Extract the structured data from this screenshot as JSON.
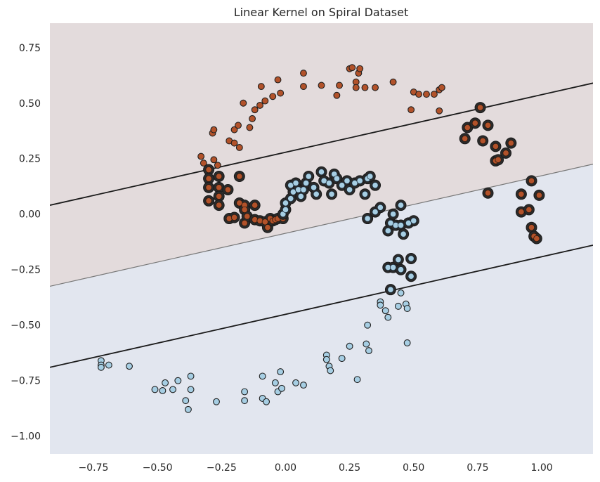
{
  "chart_data": {
    "type": "scatter",
    "title": "Linear Kernel on Spiral Dataset",
    "xlabel": "",
    "ylabel": "",
    "xlim": [
      -0.92,
      1.2
    ],
    "ylim": [
      -1.08,
      0.86
    ],
    "x_ticks": [
      -0.75,
      -0.5,
      -0.25,
      0.0,
      0.25,
      0.5,
      0.75,
      1.0
    ],
    "x_tick_labels": [
      "−0.75",
      "−0.50",
      "−0.25",
      "0.00",
      "0.25",
      "0.50",
      "0.75",
      "1.00"
    ],
    "y_ticks": [
      0.75,
      0.5,
      0.25,
      0.0,
      -0.25,
      -0.5,
      -0.75,
      -1.0
    ],
    "y_tick_labels": [
      "0.75",
      "0.50",
      "0.25",
      "0.00",
      "−0.25",
      "−0.50",
      "−0.75",
      "−1.00"
    ],
    "grid": false,
    "legend": "none",
    "regions": [
      {
        "name": "class-1-region",
        "side": "above-decision-boundary",
        "color": "#e3dbdc"
      },
      {
        "name": "class-0-region",
        "side": "below-decision-boundary",
        "color": "#e2e6ef"
      }
    ],
    "lines": [
      {
        "name": "upper-margin",
        "style": "solid",
        "color": "#1a1a1a",
        "points": [
          [
            -0.92,
            0.04
          ],
          [
            1.2,
            0.59
          ]
        ]
      },
      {
        "name": "decision-boundary",
        "style": "solid-thin",
        "color": "#777777",
        "points": [
          [
            -0.92,
            -0.325
          ],
          [
            1.2,
            0.225
          ]
        ]
      },
      {
        "name": "lower-margin",
        "style": "solid",
        "color": "#1a1a1a",
        "points": [
          [
            -0.92,
            -0.69
          ],
          [
            1.2,
            -0.14
          ]
        ]
      }
    ],
    "series": [
      {
        "class": 1,
        "color": "#b2522a",
        "edge_color": "#2a1a10",
        "points": [
          [
            -0.33,
            0.26
          ],
          [
            -0.32,
            0.23
          ],
          [
            -0.285,
            0.365
          ],
          [
            -0.28,
            0.38
          ],
          [
            -0.28,
            0.245
          ],
          [
            -0.265,
            0.22
          ],
          [
            -0.22,
            0.33
          ],
          [
            -0.2,
            0.38
          ],
          [
            -0.2,
            0.32
          ],
          [
            -0.185,
            0.4
          ],
          [
            -0.18,
            0.3
          ],
          [
            -0.165,
            0.5
          ],
          [
            -0.14,
            0.39
          ],
          [
            -0.13,
            0.43
          ],
          [
            -0.12,
            0.47
          ],
          [
            -0.1,
            0.49
          ],
          [
            -0.095,
            0.575
          ],
          [
            -0.08,
            0.51
          ],
          [
            -0.05,
            0.53
          ],
          [
            -0.03,
            0.605
          ],
          [
            -0.02,
            0.545
          ],
          [
            0.07,
            0.635
          ],
          [
            0.07,
            0.575
          ],
          [
            0.14,
            0.58
          ],
          [
            0.2,
            0.535
          ],
          [
            0.21,
            0.58
          ],
          [
            0.25,
            0.655
          ],
          [
            0.26,
            0.66
          ],
          [
            0.275,
            0.595
          ],
          [
            0.275,
            0.57
          ],
          [
            0.285,
            0.635
          ],
          [
            0.29,
            0.655
          ],
          [
            0.31,
            0.57
          ],
          [
            0.35,
            0.57
          ],
          [
            0.42,
            0.595
          ],
          [
            0.49,
            0.47
          ],
          [
            0.5,
            0.55
          ],
          [
            0.52,
            0.54
          ],
          [
            0.55,
            0.54
          ],
          [
            0.58,
            0.54
          ],
          [
            0.6,
            0.56
          ],
          [
            0.6,
            0.465
          ],
          [
            0.61,
            0.57
          ]
        ],
        "support_vectors": [
          [
            -0.3,
            0.2
          ],
          [
            -0.3,
            0.16
          ],
          [
            -0.3,
            0.12
          ],
          [
            -0.3,
            0.06
          ],
          [
            -0.26,
            0.17
          ],
          [
            -0.26,
            0.12
          ],
          [
            -0.26,
            0.08
          ],
          [
            -0.26,
            0.04
          ],
          [
            -0.225,
            0.11
          ],
          [
            -0.22,
            -0.02
          ],
          [
            -0.2,
            -0.015
          ],
          [
            -0.18,
            0.17
          ],
          [
            -0.18,
            0.05
          ],
          [
            -0.16,
            0.04
          ],
          [
            -0.16,
            0.02
          ],
          [
            -0.16,
            -0.04
          ],
          [
            -0.15,
            -0.01
          ],
          [
            -0.12,
            0.04
          ],
          [
            -0.12,
            -0.025
          ],
          [
            -0.1,
            -0.03
          ],
          [
            -0.08,
            -0.035
          ],
          [
            -0.07,
            -0.06
          ],
          [
            -0.06,
            -0.02
          ],
          [
            -0.05,
            -0.03
          ],
          [
            -0.04,
            -0.025
          ],
          [
            -0.03,
            -0.02
          ],
          [
            -0.01,
            -0.02
          ],
          [
            0.7,
            0.34
          ],
          [
            0.71,
            0.39
          ],
          [
            0.74,
            0.41
          ],
          [
            0.76,
            0.48
          ],
          [
            0.77,
            0.33
          ],
          [
            0.79,
            0.4
          ],
          [
            0.79,
            0.095
          ],
          [
            0.82,
            0.305
          ],
          [
            0.82,
            0.24
          ],
          [
            0.83,
            0.245
          ],
          [
            0.86,
            0.275
          ],
          [
            0.88,
            0.32
          ],
          [
            0.92,
            0.01
          ],
          [
            0.92,
            0.09
          ],
          [
            0.95,
            0.02
          ],
          [
            0.96,
            0.15
          ],
          [
            0.96,
            -0.06
          ],
          [
            0.97,
            -0.1
          ],
          [
            0.98,
            -0.11
          ],
          [
            0.99,
            0.085
          ]
        ]
      },
      {
        "class": 0,
        "color": "#a6cee3",
        "edge_color": "#1a2a38",
        "points": [
          [
            -0.72,
            -0.66
          ],
          [
            -0.72,
            -0.68
          ],
          [
            -0.72,
            -0.69
          ],
          [
            -0.69,
            -0.68
          ],
          [
            -0.61,
            -0.685
          ],
          [
            -0.51,
            -0.79
          ],
          [
            -0.48,
            -0.795
          ],
          [
            -0.47,
            -0.76
          ],
          [
            -0.44,
            -0.79
          ],
          [
            -0.42,
            -0.75
          ],
          [
            -0.39,
            -0.84
          ],
          [
            -0.38,
            -0.88
          ],
          [
            -0.37,
            -0.73
          ],
          [
            -0.37,
            -0.79
          ],
          [
            -0.27,
            -0.845
          ],
          [
            -0.16,
            -0.8
          ],
          [
            -0.16,
            -0.84
          ],
          [
            -0.09,
            -0.73
          ],
          [
            -0.09,
            -0.83
          ],
          [
            -0.075,
            -0.845
          ],
          [
            -0.04,
            -0.76
          ],
          [
            -0.03,
            -0.8
          ],
          [
            -0.02,
            -0.71
          ],
          [
            -0.015,
            -0.785
          ],
          [
            0.04,
            -0.76
          ],
          [
            0.07,
            -0.77
          ],
          [
            0.16,
            -0.635
          ],
          [
            0.16,
            -0.655
          ],
          [
            0.17,
            -0.685
          ],
          [
            0.175,
            -0.705
          ],
          [
            0.22,
            -0.65
          ],
          [
            0.25,
            -0.595
          ],
          [
            0.28,
            -0.745
          ],
          [
            0.315,
            -0.585
          ],
          [
            0.32,
            -0.5
          ],
          [
            0.325,
            -0.615
          ],
          [
            0.37,
            -0.395
          ],
          [
            0.37,
            -0.41
          ],
          [
            0.39,
            -0.435
          ],
          [
            0.4,
            -0.465
          ],
          [
            0.44,
            -0.415
          ],
          [
            0.45,
            -0.355
          ],
          [
            0.47,
            -0.405
          ],
          [
            0.475,
            -0.425
          ],
          [
            0.475,
            -0.58
          ]
        ],
        "support_vectors": [
          [
            -0.01,
            0.0
          ],
          [
            0.0,
            0.02
          ],
          [
            0.0,
            0.05
          ],
          [
            0.02,
            0.07
          ],
          [
            0.03,
            0.1
          ],
          [
            0.02,
            0.13
          ],
          [
            0.04,
            0.14
          ],
          [
            0.05,
            0.11
          ],
          [
            0.06,
            0.08
          ],
          [
            0.07,
            0.11
          ],
          [
            0.08,
            0.14
          ],
          [
            0.09,
            0.17
          ],
          [
            0.11,
            0.12
          ],
          [
            0.12,
            0.09
          ],
          [
            0.14,
            0.19
          ],
          [
            0.15,
            0.15
          ],
          [
            0.17,
            0.14
          ],
          [
            0.18,
            0.09
          ],
          [
            0.19,
            0.18
          ],
          [
            0.2,
            0.16
          ],
          [
            0.22,
            0.13
          ],
          [
            0.24,
            0.15
          ],
          [
            0.25,
            0.11
          ],
          [
            0.27,
            0.14
          ],
          [
            0.29,
            0.15
          ],
          [
            0.31,
            0.09
          ],
          [
            0.32,
            0.16
          ],
          [
            0.33,
            0.17
          ],
          [
            0.35,
            0.13
          ],
          [
            0.32,
            -0.02
          ],
          [
            0.35,
            0.01
          ],
          [
            0.37,
            0.03
          ],
          [
            0.4,
            -0.075
          ],
          [
            0.41,
            -0.04
          ],
          [
            0.42,
            0.0
          ],
          [
            0.43,
            -0.05
          ],
          [
            0.45,
            0.04
          ],
          [
            0.45,
            -0.05
          ],
          [
            0.46,
            -0.09
          ],
          [
            0.48,
            -0.04
          ],
          [
            0.49,
            -0.2
          ],
          [
            0.49,
            -0.28
          ],
          [
            0.5,
            -0.03
          ],
          [
            0.4,
            -0.24
          ],
          [
            0.41,
            -0.34
          ],
          [
            0.42,
            -0.24
          ],
          [
            0.44,
            -0.205
          ],
          [
            0.45,
            -0.25
          ]
        ]
      }
    ]
  }
}
